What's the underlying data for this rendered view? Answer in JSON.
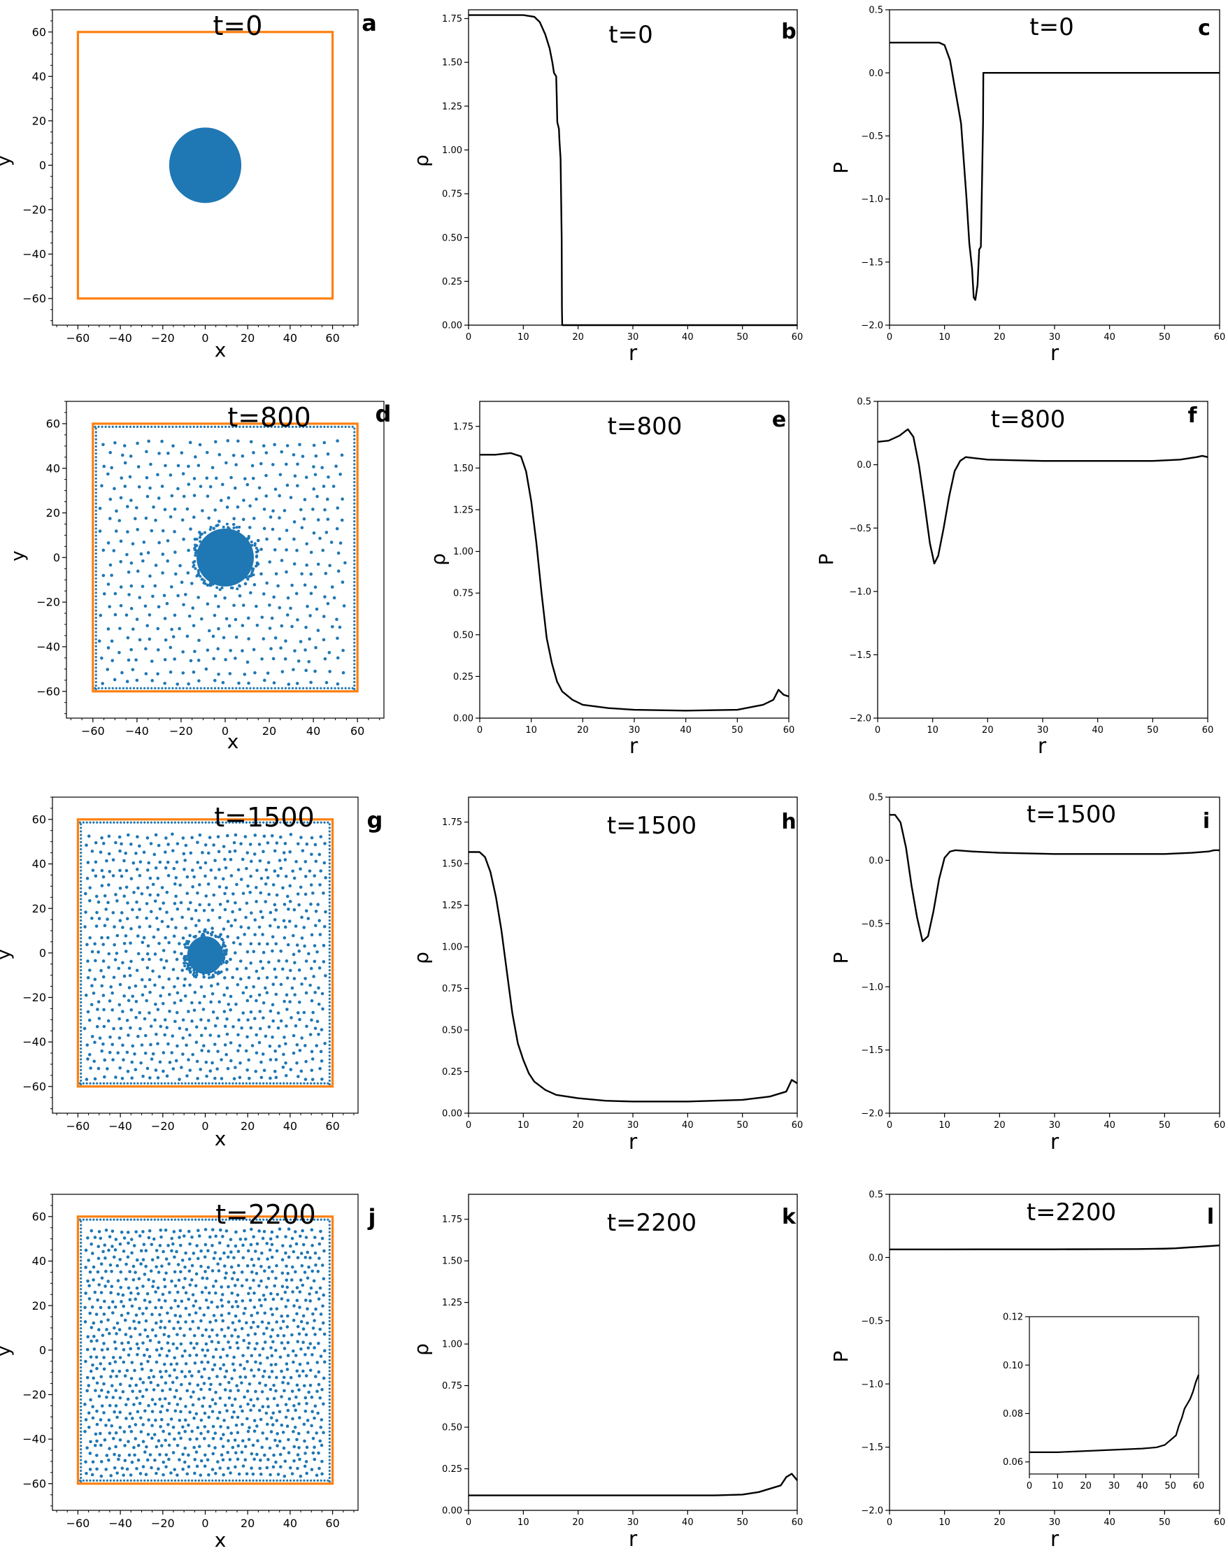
{
  "figure": {
    "panels": [
      "a",
      "b",
      "c",
      "d",
      "e",
      "f",
      "g",
      "h",
      "i",
      "j",
      "k",
      "l"
    ]
  },
  "chart_data": [
    {
      "id": "a",
      "panel_label": "a",
      "type": "scatter",
      "title": "t=0",
      "xlabel": "x",
      "ylabel": "y",
      "xlim": [
        -72,
        72
      ],
      "ylim": [
        -72,
        70
      ],
      "xticks": [
        -60,
        -40,
        -20,
        0,
        20,
        40,
        60
      ],
      "yticks": [
        -60,
        -40,
        -20,
        0,
        20,
        40,
        60
      ],
      "xtick_labels": [
        "−60",
        "−40",
        "−20",
        "0",
        "20",
        "40",
        "60"
      ],
      "ytick_labels": [
        "−60",
        "−40",
        "−20",
        "0",
        "20",
        "40",
        "60"
      ],
      "box": {
        "x": [
          -60,
          60
        ],
        "y": [
          -60,
          60
        ],
        "color": "#ff7f0e"
      },
      "cluster": {
        "cx": 0,
        "cy": 0,
        "r": 17,
        "color": "#1f77b4"
      },
      "scatter": {
        "mode": "none"
      }
    },
    {
      "id": "b",
      "panel_label": "b",
      "type": "line",
      "title": "t=0",
      "xlabel": "r",
      "ylabel": "ρ",
      "xlim": [
        0,
        60
      ],
      "ylim": [
        0,
        1.8
      ],
      "xticks": [
        0,
        10,
        20,
        30,
        40,
        50,
        60
      ],
      "yticks": [
        0,
        0.25,
        0.5,
        0.75,
        1.0,
        1.25,
        1.5,
        1.75
      ],
      "xtick_labels": [
        "0",
        "10",
        "20",
        "30",
        "40",
        "50",
        "60"
      ],
      "ytick_labels": [
        "0.00",
        "0.25",
        "0.50",
        "0.75",
        "1.00",
        "1.25",
        "1.50",
        "1.75"
      ],
      "x": [
        0,
        5,
        10,
        12,
        13,
        14,
        14.8,
        15.3,
        15.6,
        16,
        16.1,
        16.2,
        16.5,
        16.6,
        16.8,
        17,
        17.05,
        17.1,
        17.2,
        60
      ],
      "y": [
        1.77,
        1.77,
        1.77,
        1.76,
        1.73,
        1.66,
        1.58,
        1.5,
        1.44,
        1.42,
        1.3,
        1.16,
        1.12,
        1.05,
        0.95,
        0.5,
        0.1,
        0,
        0,
        0
      ]
    },
    {
      "id": "c",
      "panel_label": "c",
      "type": "line",
      "title": "t=0",
      "xlabel": "r",
      "ylabel": "P",
      "xlim": [
        0,
        60
      ],
      "ylim": [
        -2.0,
        0.5
      ],
      "xticks": [
        0,
        10,
        20,
        30,
        40,
        50,
        60
      ],
      "yticks": [
        -2.0,
        -1.5,
        -1.0,
        -0.5,
        0.0,
        0.5
      ],
      "xtick_labels": [
        "0",
        "10",
        "20",
        "30",
        "40",
        "50",
        "60"
      ],
      "ytick_labels": [
        "−2.0",
        "−1.5",
        "−1.0",
        "−0.5",
        "0.0",
        "0.5"
      ],
      "x": [
        0,
        5,
        9,
        10,
        11,
        12,
        13,
        13.5,
        14,
        14.5,
        15,
        15.3,
        15.6,
        16,
        16.3,
        16.6,
        17,
        17.05,
        17.2,
        60
      ],
      "y": [
        0.24,
        0.24,
        0.24,
        0.22,
        0.1,
        -0.15,
        -0.4,
        -0.7,
        -1.0,
        -1.35,
        -1.55,
        -1.78,
        -1.8,
        -1.68,
        -1.4,
        -1.38,
        -0.4,
        0,
        0,
        0
      ]
    },
    {
      "id": "d",
      "panel_label": "d",
      "type": "scatter",
      "title": "t=800",
      "xlabel": "x",
      "ylabel": "y",
      "xlim": [
        -72,
        72
      ],
      "ylim": [
        -72,
        70
      ],
      "xticks": [
        -60,
        -40,
        -20,
        0,
        20,
        40,
        60
      ],
      "yticks": [
        -60,
        -40,
        -20,
        0,
        20,
        40,
        60
      ],
      "xtick_labels": [
        "−60",
        "−40",
        "−20",
        "0",
        "20",
        "40",
        "60"
      ],
      "ytick_labels": [
        "−60",
        "−40",
        "−20",
        "0",
        "20",
        "40",
        "60"
      ],
      "box": {
        "x": [
          -60,
          60
        ],
        "y": [
          -60,
          60
        ],
        "color": "#ff7f0e"
      },
      "cluster": {
        "cx": 0,
        "cy": 0,
        "r": 13,
        "color": "#1f77b4"
      },
      "scatter": {
        "mode": "gas",
        "spacing": 5.6,
        "rmin": 14,
        "color": "#1f77b4"
      }
    },
    {
      "id": "e",
      "panel_label": "e",
      "type": "line",
      "title": "t=800",
      "xlabel": "r",
      "ylabel": "ρ",
      "xlim": [
        0,
        60
      ],
      "ylim": [
        0,
        1.9
      ],
      "xticks": [
        0,
        10,
        20,
        30,
        40,
        50,
        60
      ],
      "yticks": [
        0,
        0.25,
        0.5,
        0.75,
        1.0,
        1.25,
        1.5,
        1.75
      ],
      "xtick_labels": [
        "0",
        "10",
        "20",
        "30",
        "40",
        "50",
        "60"
      ],
      "ytick_labels": [
        "0.00",
        "0.25",
        "0.50",
        "0.75",
        "1.00",
        "1.25",
        "1.50",
        "1.75"
      ],
      "x": [
        0,
        3,
        6,
        8,
        9,
        10,
        11,
        12,
        13,
        14,
        15,
        16,
        18,
        20,
        25,
        30,
        40,
        50,
        55,
        57,
        58,
        59,
        60
      ],
      "y": [
        1.58,
        1.58,
        1.59,
        1.57,
        1.48,
        1.3,
        1.05,
        0.75,
        0.48,
        0.33,
        0.22,
        0.16,
        0.11,
        0.08,
        0.06,
        0.05,
        0.045,
        0.05,
        0.08,
        0.11,
        0.17,
        0.14,
        0.13
      ]
    },
    {
      "id": "f",
      "panel_label": "f",
      "type": "line",
      "title": "t=800",
      "xlabel": "r",
      "ylabel": "P",
      "xlim": [
        0,
        60
      ],
      "ylim": [
        -2.0,
        0.5
      ],
      "xticks": [
        0,
        10,
        20,
        30,
        40,
        50,
        60
      ],
      "yticks": [
        -2.0,
        -1.5,
        -1.0,
        -0.5,
        0.0,
        0.5
      ],
      "xtick_labels": [
        "0",
        "10",
        "20",
        "30",
        "40",
        "50",
        "60"
      ],
      "ytick_labels": [
        "−2.0",
        "−1.5",
        "−1.0",
        "−0.5",
        "0.0",
        "0.5"
      ],
      "x": [
        0,
        2,
        4,
        5.5,
        6.5,
        7.5,
        8.5,
        9.5,
        10.3,
        11,
        12,
        13,
        14,
        15,
        16,
        18,
        20,
        30,
        40,
        50,
        55,
        58,
        59,
        60
      ],
      "y": [
        0.18,
        0.19,
        0.23,
        0.28,
        0.22,
        0.0,
        -0.3,
        -0.62,
        -0.78,
        -0.72,
        -0.5,
        -0.25,
        -0.05,
        0.03,
        0.06,
        0.05,
        0.04,
        0.03,
        0.03,
        0.03,
        0.04,
        0.06,
        0.07,
        0.06
      ]
    },
    {
      "id": "g",
      "panel_label": "g",
      "type": "scatter",
      "title": "t=1500",
      "xlabel": "x",
      "ylabel": "y",
      "xlim": [
        -72,
        72
      ],
      "ylim": [
        -72,
        70
      ],
      "xticks": [
        -60,
        -40,
        -20,
        0,
        20,
        40,
        60
      ],
      "yticks": [
        -60,
        -40,
        -20,
        0,
        20,
        40,
        60
      ],
      "xtick_labels": [
        "−60",
        "−40",
        "−20",
        "0",
        "20",
        "40",
        "60"
      ],
      "ytick_labels": [
        "−60",
        "−40",
        "−20",
        "0",
        "20",
        "40",
        "60"
      ],
      "box": {
        "x": [
          -60,
          60
        ],
        "y": [
          -60,
          60
        ],
        "color": "#ff7f0e"
      },
      "cluster": {
        "cx": 0,
        "cy": -1,
        "r": 8.5,
        "color": "#1f77b4"
      },
      "scatter": {
        "mode": "gas",
        "spacing": 4.3,
        "rmin": 9.5,
        "color": "#1f77b4"
      }
    },
    {
      "id": "h",
      "panel_label": "h",
      "type": "line",
      "title": "t=1500",
      "xlabel": "r",
      "ylabel": "ρ",
      "xlim": [
        0,
        60
      ],
      "ylim": [
        0,
        1.9
      ],
      "xticks": [
        0,
        10,
        20,
        30,
        40,
        50,
        60
      ],
      "yticks": [
        0,
        0.25,
        0.5,
        0.75,
        1.0,
        1.25,
        1.5,
        1.75
      ],
      "xtick_labels": [
        "0",
        "10",
        "20",
        "30",
        "40",
        "50",
        "60"
      ],
      "ytick_labels": [
        "0.00",
        "0.25",
        "0.50",
        "0.75",
        "1.00",
        "1.25",
        "1.50",
        "1.75"
      ],
      "x": [
        0,
        2,
        3,
        4,
        5,
        6,
        7,
        8,
        9,
        10,
        11,
        12,
        14,
        16,
        20,
        25,
        30,
        40,
        50,
        55,
        57,
        58,
        59,
        60
      ],
      "y": [
        1.57,
        1.57,
        1.54,
        1.45,
        1.3,
        1.1,
        0.85,
        0.6,
        0.42,
        0.32,
        0.24,
        0.19,
        0.14,
        0.11,
        0.09,
        0.075,
        0.07,
        0.07,
        0.08,
        0.1,
        0.12,
        0.13,
        0.2,
        0.18
      ]
    },
    {
      "id": "i",
      "panel_label": "i",
      "type": "line",
      "title": "t=1500",
      "xlabel": "r",
      "ylabel": "P",
      "xlim": [
        0,
        60
      ],
      "ylim": [
        -2.0,
        0.5
      ],
      "xticks": [
        0,
        10,
        20,
        30,
        40,
        50,
        60
      ],
      "yticks": [
        -2.0,
        -1.5,
        -1.0,
        -0.5,
        0.0,
        0.5
      ],
      "xtick_labels": [
        "0",
        "10",
        "20",
        "30",
        "40",
        "50",
        "60"
      ],
      "ytick_labels": [
        "−2.0",
        "−1.5",
        "−1.0",
        "−0.5",
        "0.0",
        "0.5"
      ],
      "x": [
        0,
        1,
        2,
        3,
        4,
        5,
        6,
        7,
        8,
        9,
        10,
        11,
        12,
        15,
        20,
        30,
        40,
        50,
        55,
        58,
        59,
        60
      ],
      "y": [
        0.36,
        0.36,
        0.3,
        0.1,
        -0.2,
        -0.45,
        -0.64,
        -0.6,
        -0.4,
        -0.15,
        0.02,
        0.07,
        0.08,
        0.07,
        0.06,
        0.05,
        0.05,
        0.05,
        0.06,
        0.07,
        0.08,
        0.08
      ]
    },
    {
      "id": "j",
      "panel_label": "j",
      "type": "scatter",
      "title": "t=2200",
      "xlabel": "x",
      "ylabel": "y",
      "xlim": [
        -72,
        72
      ],
      "ylim": [
        -72,
        70
      ],
      "xticks": [
        -60,
        -40,
        -20,
        0,
        20,
        40,
        60
      ],
      "yticks": [
        -60,
        -40,
        -20,
        0,
        20,
        40,
        60
      ],
      "xtick_labels": [
        "−60",
        "−40",
        "−20",
        "0",
        "20",
        "40",
        "60"
      ],
      "ytick_labels": [
        "−60",
        "−40",
        "−20",
        "0",
        "20",
        "40",
        "60"
      ],
      "box": {
        "x": [
          -60,
          60
        ],
        "y": [
          -60,
          60
        ],
        "color": "#ff7f0e"
      },
      "cluster": null,
      "scatter": {
        "mode": "gas",
        "spacing": 3.6,
        "rmin": 0,
        "color": "#1f77b4"
      }
    },
    {
      "id": "k",
      "panel_label": "k",
      "type": "line",
      "title": "t=2200",
      "xlabel": "r",
      "ylabel": "ρ",
      "xlim": [
        0,
        60
      ],
      "ylim": [
        0,
        1.9
      ],
      "xticks": [
        0,
        10,
        20,
        30,
        40,
        50,
        60
      ],
      "yticks": [
        0,
        0.25,
        0.5,
        0.75,
        1.0,
        1.25,
        1.5,
        1.75
      ],
      "xtick_labels": [
        "0",
        "10",
        "20",
        "30",
        "40",
        "50",
        "60"
      ],
      "ytick_labels": [
        "0.00",
        "0.25",
        "0.50",
        "0.75",
        "1.00",
        "1.25",
        "1.50",
        "1.75"
      ],
      "x": [
        0,
        10,
        20,
        30,
        40,
        45,
        50,
        53,
        55,
        57,
        58,
        59,
        60
      ],
      "y": [
        0.09,
        0.09,
        0.09,
        0.09,
        0.09,
        0.09,
        0.095,
        0.11,
        0.13,
        0.15,
        0.2,
        0.22,
        0.18
      ]
    },
    {
      "id": "l",
      "panel_label": "l",
      "type": "line",
      "title": "t=2200",
      "xlabel": "r",
      "ylabel": "P",
      "xlim": [
        0,
        60
      ],
      "ylim": [
        -2.0,
        0.5
      ],
      "xticks": [
        0,
        10,
        20,
        30,
        40,
        50,
        60
      ],
      "yticks": [
        -2.0,
        -1.5,
        -1.0,
        -0.5,
        0.0,
        0.5
      ],
      "xtick_labels": [
        "0",
        "10",
        "20",
        "30",
        "40",
        "50",
        "60"
      ],
      "ytick_labels": [
        "−2.0",
        "−1.5",
        "−1.0",
        "−0.5",
        "0.0",
        "0.5"
      ],
      "x": [
        0,
        10,
        20,
        30,
        40,
        45,
        50,
        52,
        54,
        56,
        58,
        60
      ],
      "y": [
        0.064,
        0.064,
        0.065,
        0.065,
        0.066,
        0.067,
        0.07,
        0.073,
        0.079,
        0.084,
        0.09,
        0.096
      ],
      "inset": {
        "xlim": [
          0,
          60
        ],
        "ylim": [
          0.055,
          0.12
        ],
        "xticks": [
          0,
          10,
          20,
          30,
          40,
          50,
          60
        ],
        "yticks": [
          0.06,
          0.08,
          0.1,
          0.12
        ],
        "xtick_labels": [
          "0",
          "10",
          "20",
          "30",
          "40",
          "50",
          "60"
        ],
        "ytick_labels": [
          "0.06",
          "0.08",
          "0.10",
          "0.12"
        ],
        "x": [
          0,
          10,
          20,
          30,
          40,
          45,
          48,
          50,
          52,
          53,
          54,
          55,
          56,
          57,
          58,
          59,
          60
        ],
        "y": [
          0.064,
          0.064,
          0.0645,
          0.065,
          0.0655,
          0.066,
          0.067,
          0.069,
          0.071,
          0.075,
          0.078,
          0.082,
          0.084,
          0.086,
          0.089,
          0.093,
          0.096
        ]
      }
    }
  ]
}
